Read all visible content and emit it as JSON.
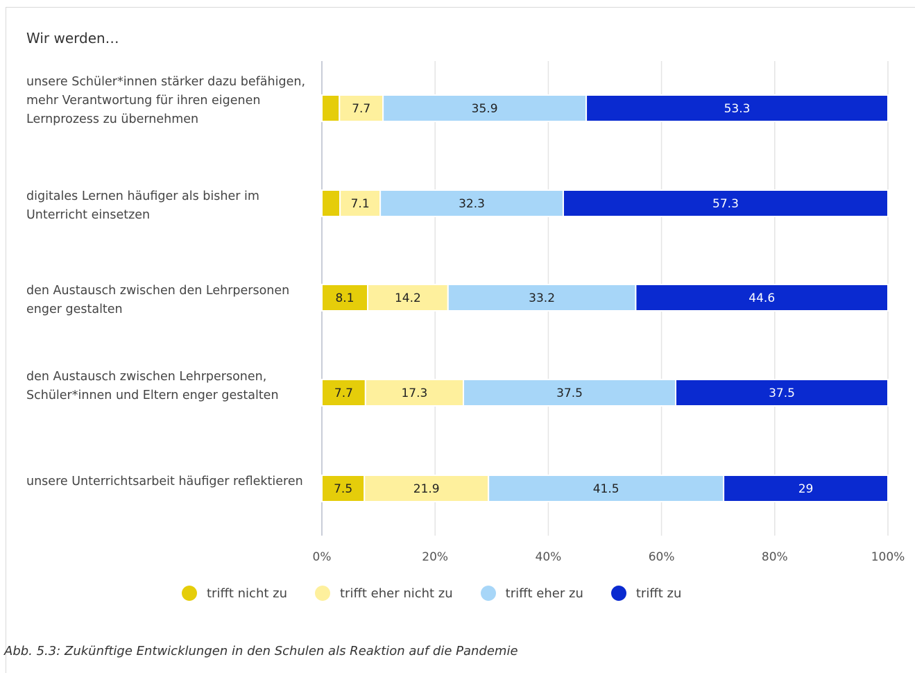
{
  "chart_data": {
    "type": "bar",
    "orientation": "horizontal",
    "stacked": true,
    "percent_stacked": true,
    "title": "Wir werden…",
    "categories": [
      "unsere Schüler*innen stärker dazu befähigen, mehr Verantwortung für ihren eigenen Lernprozess zu übernehmen",
      "digitales Lernen häufiger als bisher im Unterricht einsetzen",
      "den Austausch zwischen den Lehrpersonen enger gestalten",
      "den Austausch zwischen Lehrpersonen, Schüler*innen und Eltern enger gestalten",
      "unsere Unterrichtsarbeit häufiger reflektieren"
    ],
    "series": [
      {
        "name": "trifft nicht zu",
        "color": "#e5cd0a",
        "text_color": "#222222",
        "values": [
          3.1,
          3.2,
          8.1,
          7.7,
          7.5
        ],
        "labels": [
          "",
          "",
          "8.1",
          "7.7",
          "7.5"
        ]
      },
      {
        "name": "trifft eher nicht zu",
        "color": "#fef09d",
        "text_color": "#222222",
        "values": [
          7.7,
          7.1,
          14.2,
          17.3,
          21.9
        ],
        "labels": [
          "7.7",
          "7.1",
          "14.2",
          "17.3",
          "21.9"
        ]
      },
      {
        "name": "trifft eher zu",
        "color": "#a7d6f8",
        "text_color": "#222222",
        "values": [
          35.9,
          32.3,
          33.2,
          37.5,
          41.5
        ],
        "labels": [
          "35.9",
          "32.3",
          "33.2",
          "37.5",
          "41.5"
        ]
      },
      {
        "name": "trifft zu",
        "color": "#0a2ad0",
        "text_color": "#ffffff",
        "values": [
          53.3,
          57.3,
          44.6,
          37.5,
          29
        ],
        "labels": [
          "53.3",
          "57.3",
          "44.6",
          "37.5",
          "29"
        ]
      }
    ],
    "xlim": [
      0,
      100
    ],
    "x_ticks": [
      "0%",
      "20%",
      "40%",
      "60%",
      "80%",
      "100%"
    ],
    "grid": true,
    "legend_position": "bottom"
  },
  "caption": "Abb. 5.3: Zukünftige Entwicklungen in den Schulen als Reaktion auf die Pandemie"
}
